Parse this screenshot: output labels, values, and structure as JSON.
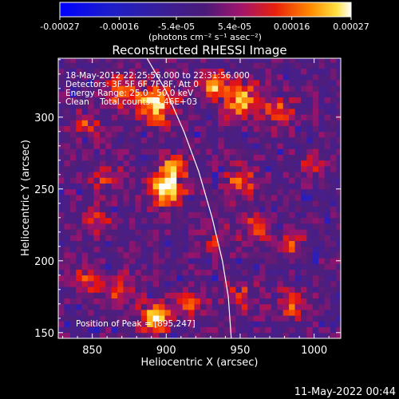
{
  "colorbar": {
    "tick_labels": [
      "-0.00027",
      "-0.00016",
      "-5.4e-05",
      "5.4e-05",
      "0.00016",
      "0.00027"
    ],
    "tick_values": [
      -0.00027,
      -0.00016,
      -5.4e-05,
      5.4e-05,
      0.00016,
      0.00027
    ],
    "range": [
      -0.00027,
      0.00027
    ],
    "units_text": "(photons cm⁻² s⁻¹ asec⁻²)"
  },
  "chart_data": {
    "type": "heatmap",
    "title": "Reconstructed RHESSI Image",
    "xlabel": "Heliocentric X (arcsec)",
    "ylabel": "Heliocentric Y (arcsec)",
    "xlim": [
      827,
      1018
    ],
    "ylim": [
      146,
      341
    ],
    "x_ticks": [
      850,
      900,
      950,
      1000
    ],
    "y_ticks": [
      150,
      200,
      250,
      300
    ],
    "annotations": [
      "18-May-2012 22:25:56.000 to 22:31:56.000",
      "Detectors: 3F 5F 6F 7F 8F, Att 0",
      "Energy Range: 25.0 - 50.0 keV",
      "Clean    Total counts: 4.46E+03"
    ],
    "peak_label": "Position of Peak = [895,247]",
    "peak": [
      895,
      247
    ],
    "limb_curve": [
      [
        887,
        341
      ],
      [
        900,
        318
      ],
      [
        912,
        290
      ],
      [
        922,
        262
      ],
      [
        931,
        230
      ],
      [
        938,
        200
      ],
      [
        942,
        175
      ],
      [
        944,
        146
      ]
    ],
    "sources": [
      {
        "x": 900,
        "y": 250,
        "amp": 1.0,
        "sigma": 8
      },
      {
        "x": 905,
        "y": 265,
        "amp": 0.7,
        "sigma": 6
      },
      {
        "x": 893,
        "y": 310,
        "amp": 0.9,
        "sigma": 9
      },
      {
        "x": 870,
        "y": 318,
        "amp": 0.55,
        "sigma": 8
      },
      {
        "x": 932,
        "y": 322,
        "amp": 0.8,
        "sigma": 6
      },
      {
        "x": 950,
        "y": 312,
        "amp": 0.75,
        "sigma": 9
      },
      {
        "x": 975,
        "y": 305,
        "amp": 0.5,
        "sigma": 8
      },
      {
        "x": 845,
        "y": 295,
        "amp": 0.45,
        "sigma": 6
      },
      {
        "x": 860,
        "y": 258,
        "amp": 0.4,
        "sigma": 7
      },
      {
        "x": 855,
        "y": 230,
        "amp": 0.35,
        "sigma": 7
      },
      {
        "x": 950,
        "y": 255,
        "amp": 0.55,
        "sigma": 7
      },
      {
        "x": 960,
        "y": 225,
        "amp": 0.5,
        "sigma": 7
      },
      {
        "x": 985,
        "y": 212,
        "amp": 0.45,
        "sigma": 6
      },
      {
        "x": 935,
        "y": 215,
        "amp": 0.4,
        "sigma": 6
      },
      {
        "x": 845,
        "y": 185,
        "amp": 0.45,
        "sigma": 7
      },
      {
        "x": 870,
        "y": 180,
        "amp": 0.5,
        "sigma": 7
      },
      {
        "x": 893,
        "y": 160,
        "amp": 0.85,
        "sigma": 7
      },
      {
        "x": 917,
        "y": 170,
        "amp": 0.55,
        "sigma": 6
      },
      {
        "x": 950,
        "y": 175,
        "amp": 0.45,
        "sigma": 7
      },
      {
        "x": 985,
        "y": 170,
        "amp": 0.5,
        "sigma": 7
      },
      {
        "x": 1000,
        "y": 270,
        "amp": 0.4,
        "sigma": 6
      }
    ]
  },
  "timestamp": "11-May-2022 00:44"
}
